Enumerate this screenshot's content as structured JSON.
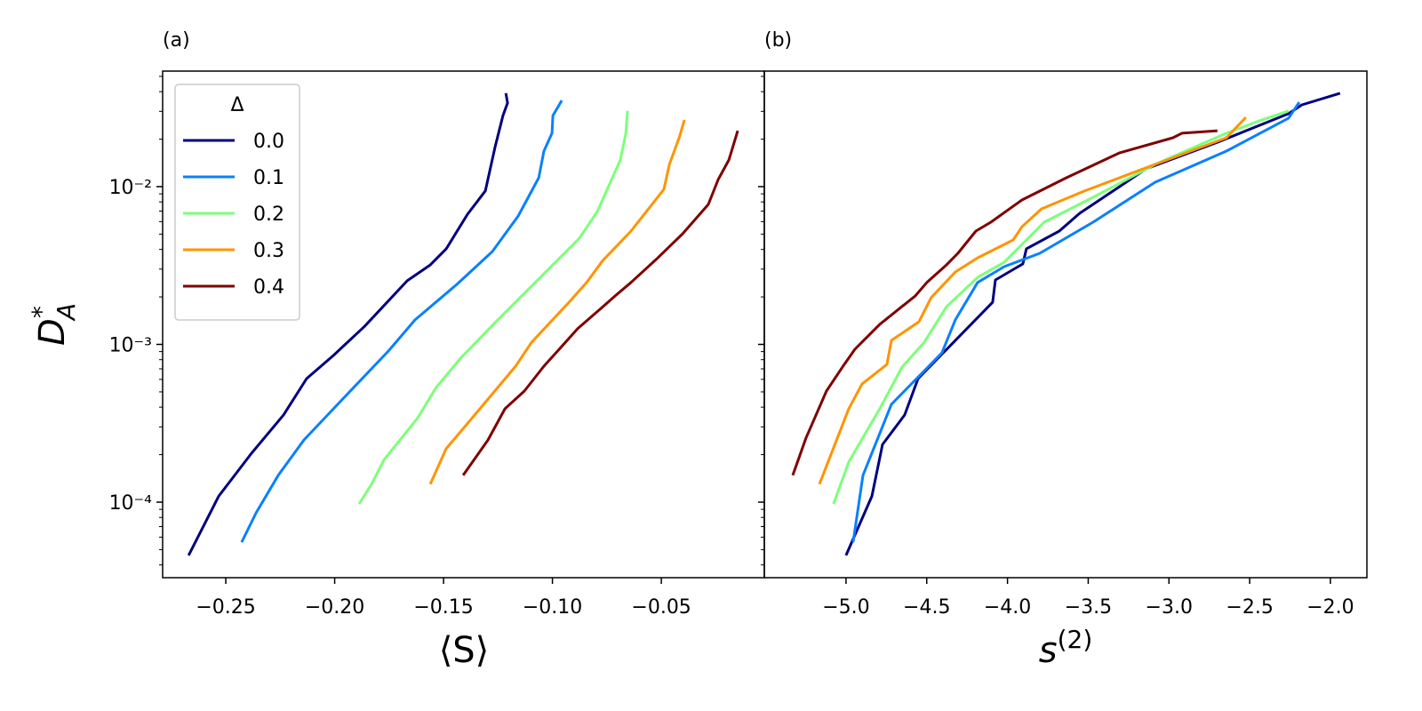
{
  "chart_data": [
    {
      "type": "line",
      "title": "(a)",
      "xlabel": "⟨S⟩",
      "ylabel": {
        "base": "D",
        "sup": "*",
        "sub": "A"
      },
      "xlim": [
        -0.279,
        -0.0027
      ],
      "ylim": [
        3.32e-05,
        0.054
      ],
      "yscale": "log",
      "xticks": [
        {
          "value": -0.25,
          "label": "−0.25"
        },
        {
          "value": -0.2,
          "label": "−0.20"
        },
        {
          "value": -0.15,
          "label": "−0.15"
        },
        {
          "value": -0.1,
          "label": "−0.10"
        },
        {
          "value": -0.05,
          "label": "−0.05"
        }
      ],
      "yticks": [
        {
          "value": 0.0001,
          "label": "10⁻⁴"
        },
        {
          "value": 0.001,
          "label": "10⁻³"
        },
        {
          "value": 0.01,
          "label": "10⁻²"
        }
      ],
      "yminorticks": [
        4e-05,
        5e-05,
        6e-05,
        7e-05,
        8e-05,
        9e-05,
        0.0002,
        0.0003,
        0.0004,
        0.0005,
        0.0006,
        0.0007,
        0.0008,
        0.0009,
        0.002,
        0.003,
        0.004,
        0.005,
        0.006,
        0.007,
        0.008,
        0.009,
        0.02,
        0.03,
        0.04,
        0.05
      ],
      "legend": {
        "title": "Δ",
        "position": "upper left"
      },
      "series": [
        {
          "name": "0.0",
          "color": "#000080",
          "x": [
            -0.2671,
            -0.2533,
            -0.2382,
            -0.2235,
            -0.2129,
            -0.2006,
            -0.1863,
            -0.1667,
            -0.1561,
            -0.1488,
            -0.139,
            -0.1308,
            -0.1263,
            -0.1227,
            -0.1206,
            -0.1214
          ],
          "y": [
            4.6e-05,
            0.000109,
            0.000204,
            0.000357,
            0.000607,
            0.00085,
            0.0013,
            0.00253,
            0.00319,
            0.00403,
            0.00668,
            0.0094,
            0.018,
            0.0283,
            0.0339,
            0.0391
          ]
        },
        {
          "name": "0.1",
          "color": "#0a80ff",
          "x": [
            -0.2427,
            -0.2361,
            -0.2259,
            -0.2141,
            -0.1994,
            -0.1753,
            -0.1631,
            -0.1439,
            -0.1276,
            -0.1157,
            -0.1063,
            -0.1039,
            -0.1002,
            -0.0998,
            -0.0957
          ],
          "y": [
            5.57e-05,
            8.55e-05,
            0.000148,
            0.000248,
            0.000406,
            0.000908,
            0.00143,
            0.0024,
            0.00388,
            0.00652,
            0.01138,
            0.0168,
            0.0218,
            0.0282,
            0.0352
          ]
        },
        {
          "name": "0.2",
          "color": "#7dff7a",
          "x": [
            -0.1888,
            -0.1831,
            -0.1773,
            -0.1618,
            -0.1537,
            -0.1422,
            -0.1251,
            -0.1088,
            -0.0876,
            -0.0794,
            -0.0688,
            -0.0663,
            -0.0655
          ],
          "y": [
            9.75e-05,
            0.00013,
            0.000186,
            0.000343,
            0.000526,
            0.000818,
            0.00143,
            0.0024,
            0.00471,
            0.00695,
            0.01475,
            0.0218,
            0.0302
          ]
        },
        {
          "name": "0.3",
          "color": "#ff9400",
          "x": [
            -0.1561,
            -0.1488,
            -0.1333,
            -0.1169,
            -0.1096,
            -0.0924,
            -0.0843,
            -0.0769,
            -0.0639,
            -0.0488,
            -0.0463,
            -0.0418,
            -0.0394
          ],
          "y": [
            0.00013,
            0.000218,
            0.000391,
            0.000728,
            0.00103,
            0.00185,
            0.00247,
            0.0034,
            0.00523,
            0.00962,
            0.01384,
            0.0204,
            0.0265
          ]
        },
        {
          "name": "0.4",
          "color": "#800000",
          "x": [
            -0.141,
            -0.1296,
            -0.1218,
            -0.1129,
            -0.1039,
            -0.0965,
            -0.0884,
            -0.0769,
            -0.0712,
            -0.0639,
            -0.0516,
            -0.0402,
            -0.0284,
            -0.0239,
            -0.019,
            -0.0149
          ],
          "y": [
            0.000148,
            0.000248,
            0.000391,
            0.000506,
            0.000728,
            0.000944,
            0.00126,
            0.00173,
            0.00203,
            0.00247,
            0.00354,
            0.00503,
            0.00771,
            0.0111,
            0.01475,
            0.0226
          ]
        }
      ]
    },
    {
      "type": "line",
      "title": "(b)",
      "xlabel": {
        "base": "s",
        "sup": "(2)"
      },
      "xlim": [
        -5.506,
        -1.774
      ],
      "ylim": [
        3.32e-05,
        0.054
      ],
      "yscale": "log",
      "sharey": true,
      "xticks": [
        {
          "value": -5,
          "label": "−5.0"
        },
        {
          "value": -4.5,
          "label": "−4.5"
        },
        {
          "value": -4,
          "label": "−4.0"
        },
        {
          "value": -3.5,
          "label": "−3.5"
        },
        {
          "value": -3,
          "label": "−3.0"
        },
        {
          "value": -2.5,
          "label": "−2.5"
        },
        {
          "value": -2,
          "label": "−2.0"
        }
      ],
      "series": [
        {
          "color": "#000080",
          "x": [
            -5.0,
            -4.84,
            -4.774,
            -4.637,
            -4.554,
            -4.092,
            -4.075,
            -3.905,
            -3.883,
            -3.679,
            -3.553,
            -3.14,
            -2.7,
            -2.259,
            -2.177,
            -1.94
          ],
          "y": [
            4.6e-05,
            0.000109,
            0.000232,
            0.000357,
            0.000607,
            0.00185,
            0.00256,
            0.00324,
            0.00404,
            0.00523,
            0.00678,
            0.013,
            0.0191,
            0.029,
            0.033,
            0.0391
          ]
        },
        {
          "color": "#0a80ff",
          "x": [
            -4.956,
            -4.895,
            -4.719,
            -4.406,
            -4.323,
            -4.185,
            -4.02,
            -3.8,
            -3.47,
            -3.085,
            -2.644,
            -2.259,
            -2.193
          ],
          "y": [
            5.57e-05,
            0.000148,
            0.000417,
            0.000883,
            0.00143,
            0.00247,
            0.00311,
            0.00378,
            0.00595,
            0.01067,
            0.0168,
            0.0272,
            0.0343
          ]
        },
        {
          "color": "#7dff7a",
          "x": [
            -5.077,
            -4.983,
            -4.791,
            -4.653,
            -4.516,
            -4.378,
            -4.185,
            -4.02,
            -3.773,
            -3.47,
            -3.085,
            -2.644,
            -2.424,
            -2.259
          ],
          "y": [
            9.75e-05,
            0.00018,
            0.000391,
            0.000718,
            0.00103,
            0.00173,
            0.00266,
            0.00332,
            0.00595,
            0.00856,
            0.01384,
            0.0218,
            0.0265,
            0.0302
          ]
        },
        {
          "color": "#ff9400",
          "x": [
            -5.165,
            -4.983,
            -4.901,
            -4.747,
            -4.719,
            -4.549,
            -4.472,
            -4.323,
            -4.185,
            -3.965,
            -3.91,
            -3.789,
            -3.525,
            -3.085,
            -2.644,
            -2.523
          ],
          "y": [
            0.00013,
            0.000391,
            0.000561,
            0.000746,
            0.00106,
            0.00139,
            0.00198,
            0.00288,
            0.00354,
            0.00459,
            0.00557,
            0.00723,
            0.00937,
            0.01384,
            0.0204,
            0.0275
          ]
        },
        {
          "color": "#800000",
          "x": [
            -5.33,
            -5.248,
            -5.121,
            -5.011,
            -4.945,
            -4.791,
            -4.571,
            -4.499,
            -4.378,
            -4.307,
            -4.196,
            -4.103,
            -3.91,
            -3.635,
            -3.305,
            -2.975,
            -2.92,
            -2.7
          ],
          "y": [
            0.000148,
            0.000255,
            0.000506,
            0.000746,
            0.000931,
            0.00134,
            0.00203,
            0.00247,
            0.00319,
            0.00378,
            0.00523,
            0.00595,
            0.00823,
            0.01138,
            0.0164,
            0.0204,
            0.0218,
            0.0226
          ]
        }
      ]
    }
  ]
}
